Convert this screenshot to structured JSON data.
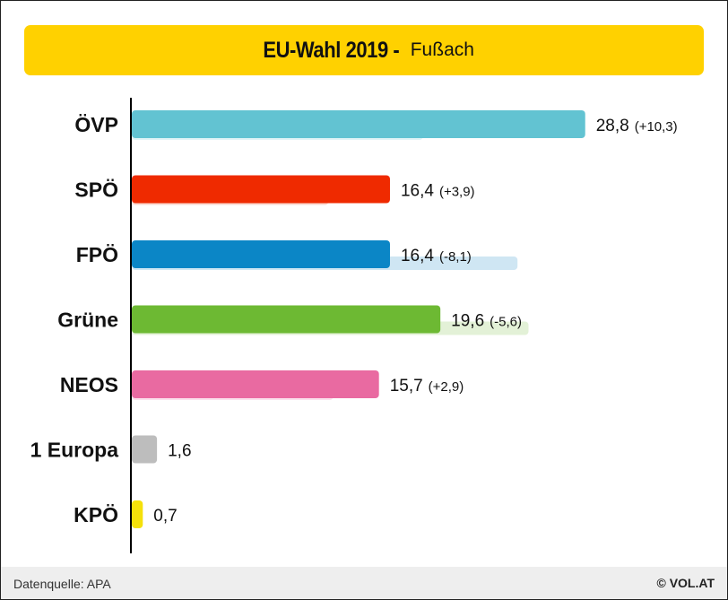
{
  "header": {
    "title": "EU-Wahl 2019 -",
    "subtitle": "Fußach"
  },
  "footer": {
    "source": "Datenquelle: APA",
    "brand": "© VOL.AT"
  },
  "chart_data": {
    "type": "bar",
    "orientation": "horizontal",
    "title": "EU-Wahl 2019 - Fußach",
    "categories": [
      "ÖVP",
      "SPÖ",
      "FPÖ",
      "Grüne",
      "NEOS",
      "1 Europa",
      "KPÖ"
    ],
    "values": [
      28.8,
      16.4,
      16.4,
      19.6,
      15.7,
      1.6,
      0.7
    ],
    "value_labels": [
      "28,8",
      "16,4",
      "16,4",
      "19,6",
      "15,7",
      "1,6",
      "0,7"
    ],
    "change_labels": [
      "(+10,3)",
      "(+3,9)",
      "(-8,1)",
      "(-5,6)",
      "(+2,9)",
      "",
      ""
    ],
    "previous_values": [
      18.5,
      12.5,
      24.5,
      25.2,
      12.8,
      null,
      null
    ],
    "colors": [
      "#62c3d2",
      "#ef2a00",
      "#0b86c6",
      "#6db933",
      "#e96aa1",
      "#bdbdbd",
      "#f5e10a"
    ],
    "previous_colors": [
      "#e0f4f7",
      "#fad6cd",
      "#cfe6f3",
      "#e3f1d7",
      "#fbe1ec",
      null,
      null
    ],
    "grid": false,
    "legend": "none"
  }
}
